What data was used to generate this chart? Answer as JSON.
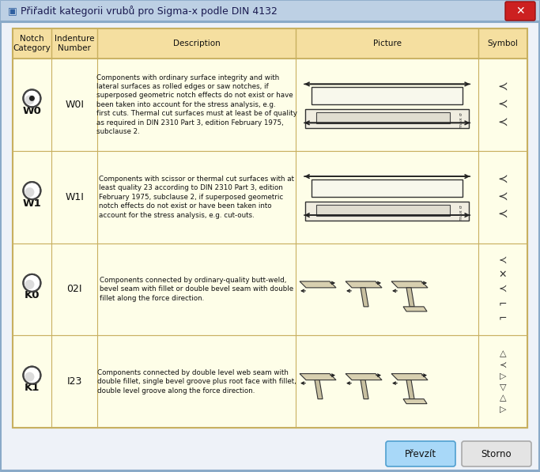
{
  "title": "Přiřadit kategorii vrubů pro Sigma-x podle DIN 4132",
  "col_headers": [
    "Notch\nCategory",
    "Indenture\nNumber",
    "Description",
    "Picture",
    "Symbol"
  ],
  "rows": [
    {
      "notch": "W0",
      "number": "W0I",
      "description": "Components with ordinary surface integrity and with\nlateral surfaces as rolled edges or saw notches, if\nsuperposed geometric notch effects do not exist or have\nbeen taken into account for the stress analysis, e.g.\nfirst cuts. Thermal cut surfaces must at least be of quality\nas required in DIN 2310 Part 3, edition February 1975,\nsubclause 2."
    },
    {
      "notch": "W1",
      "number": "W1I",
      "description": "Components with scissor or thermal cut surfaces with at\nleast quality 23 according to DIN 2310 Part 3, edition\nFebruary 1975, subclause 2, if superposed geometric\nnotch effects do not exist or have been taken into\naccount for the stress analysis, e.g. cut-outs."
    },
    {
      "notch": "K0",
      "number": "02I",
      "description": "Components connected by ordinary-quality butt-weld,\nbevel seam with fillet or double bevel seam with double\nfillet along the force direction."
    },
    {
      "notch": "K1",
      "number": "I23",
      "description": "Components connected by double level web seam with\ndouble fillet, single bevel groove plus root face with fillet,\ndouble level groove along the force direction."
    }
  ],
  "bg_window": "#d6e4f0",
  "bg_header": "#f5dfa0",
  "bg_row": "#fefee8",
  "border_color": "#c8b060",
  "title_bg": "#bdd0e4",
  "title_color": "#1a1a50",
  "button1": "Převzít",
  "button2": "Storno",
  "col_props": [
    0.075,
    0.09,
    0.385,
    0.355,
    0.095
  ]
}
